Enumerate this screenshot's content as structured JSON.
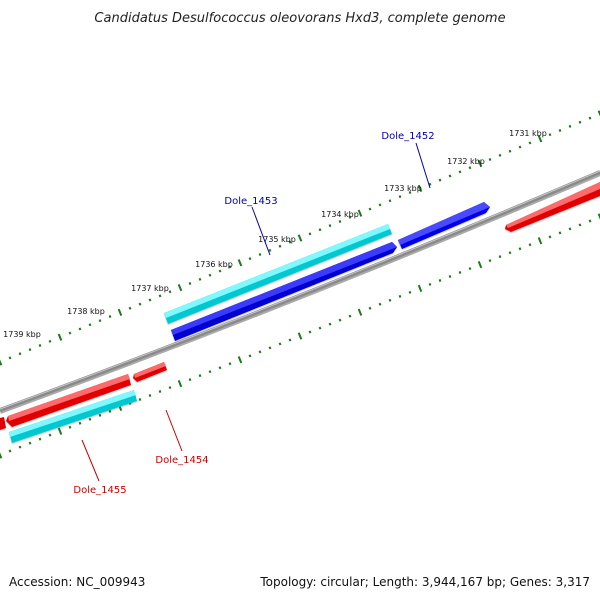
{
  "title": "Candidatus Desulfococcus oleovorans Hxd3, complete genome",
  "footer": {
    "accession": "Accession: NC_009943",
    "topology": "Topology: circular; Length: 3,944,167 bp; Genes: 3,317"
  },
  "colors": {
    "backbone": "#808080",
    "tick": "#1a7a1a",
    "gene_forward_blue": "#0000ee",
    "gene_forward_cyan": "#00e8f0",
    "gene_reverse_red": "#ee0000",
    "label_blue": "#0000aa",
    "label_red": "#cc0000"
  },
  "axis": {
    "unit": "kbp",
    "tick_labels": [
      "1731 kbp",
      "1732 kbp",
      "1733 kbp",
      "1734 kbp",
      "1735 kbp",
      "1736 kbp",
      "1737 kbp",
      "1738 kbp",
      "1739 kbp"
    ]
  },
  "genes": [
    {
      "name": "Dole_1452",
      "strand": "+",
      "color": "blue"
    },
    {
      "name": "Dole_1453",
      "strand": "+",
      "color": "cyan"
    },
    {
      "name": "Dole_1454",
      "strand": "-",
      "color": "red"
    },
    {
      "name": "Dole_1455",
      "strand": "-",
      "color": "cyan"
    }
  ]
}
